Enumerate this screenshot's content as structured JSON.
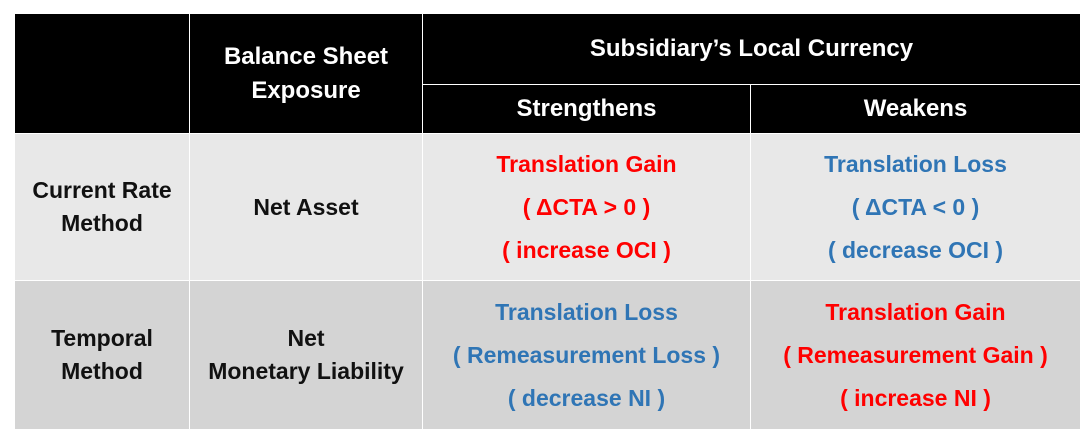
{
  "header": {
    "corner": "",
    "exposure_line1": "Balance Sheet",
    "exposure_line2": "Exposure",
    "currency_group": "Subsidiary’s Local Currency",
    "strengthens": "Strengthens",
    "weakens": "Weakens"
  },
  "rows": [
    {
      "method_line1": "Current Rate",
      "method_line2": "Method",
      "exposure_line1": "Net Asset",
      "exposure_line2": "",
      "strengthens": {
        "line1": "Translation Gain",
        "line2": "( ΔCTA > 0 )",
        "line3": "( increase OCI )",
        "tone": "gain"
      },
      "weakens": {
        "line1": "Translation Loss",
        "line2": "( ΔCTA < 0 )",
        "line3": "( decrease OCI )",
        "tone": "loss"
      }
    },
    {
      "method_line1": "Temporal",
      "method_line2": "Method",
      "exposure_line1": "Net",
      "exposure_line2": "Monetary Liability",
      "strengthens": {
        "line1": "Translation Loss",
        "line2": "( Remeasurement Loss )",
        "line3": "( decrease NI )",
        "tone": "loss"
      },
      "weakens": {
        "line1": "Translation Gain",
        "line2": "( Remeasurement Gain )",
        "line3": "( increase NI )",
        "tone": "gain"
      }
    }
  ],
  "colors": {
    "header_bg": "#000000",
    "gain": "#ff0000",
    "loss": "#2f75b5",
    "row1_bg": "#e8e8e8",
    "row2_bg": "#d4d4d4"
  }
}
